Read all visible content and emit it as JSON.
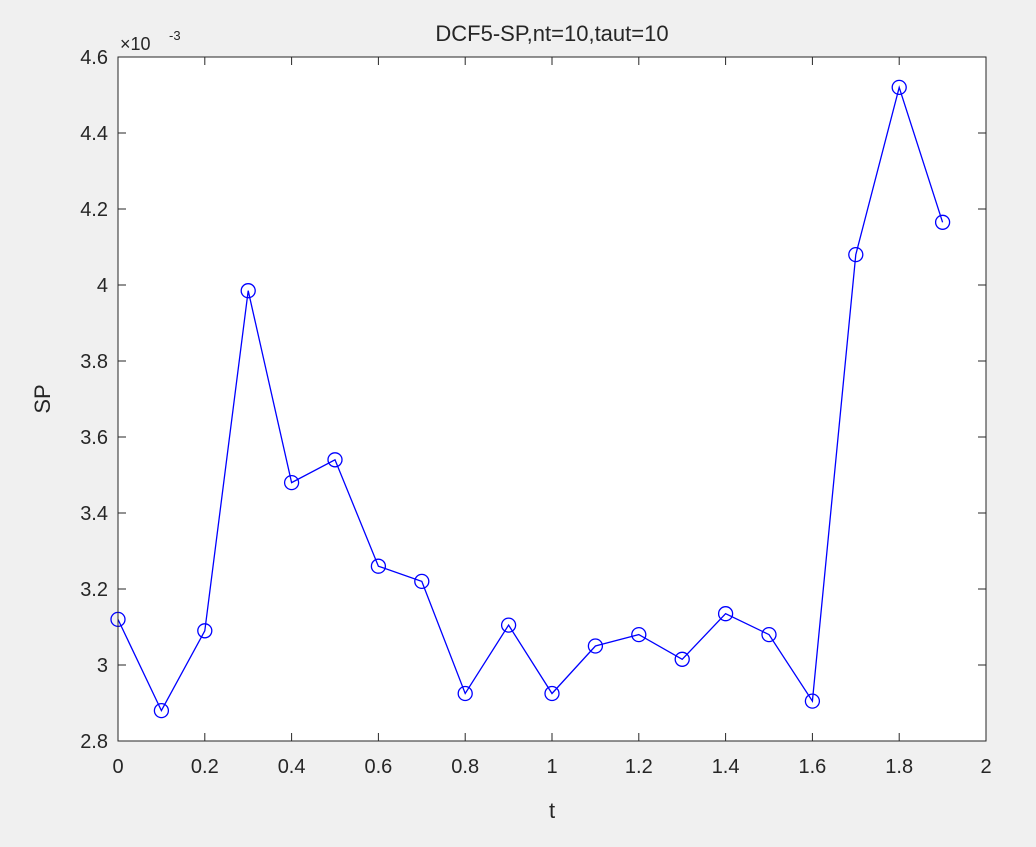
{
  "chart_data": {
    "type": "line",
    "title": "DCF5-SP,nt=10,taut=10",
    "xlabel": "t",
    "ylabel": "SP",
    "exponent_label": "×10",
    "exponent_power": "-3",
    "xlim": [
      0,
      2
    ],
    "ylim": [
      2.8,
      4.6
    ],
    "x_ticks": [
      "0",
      "0.2",
      "0.4",
      "0.6",
      "0.8",
      "1",
      "1.2",
      "1.4",
      "1.6",
      "1.8",
      "2"
    ],
    "y_ticks": [
      "2.8",
      "3",
      "3.2",
      "3.4",
      "3.6",
      "3.8",
      "4",
      "4.2",
      "4.4",
      "4.6"
    ],
    "grid": false,
    "series": [
      {
        "color": "#0000ff",
        "marker": "circle",
        "x": [
          0,
          0.1,
          0.2,
          0.3,
          0.4,
          0.5,
          0.6,
          0.7,
          0.8,
          0.9,
          1.0,
          1.1,
          1.2,
          1.3,
          1.4,
          1.5,
          1.6,
          1.7,
          1.8,
          1.9
        ],
        "y": [
          3.12,
          2.88,
          3.09,
          3.985,
          3.48,
          3.54,
          3.26,
          3.22,
          2.925,
          3.105,
          2.925,
          3.05,
          3.08,
          3.015,
          3.135,
          3.08,
          2.905,
          4.08,
          4.52,
          4.165
        ]
      }
    ]
  }
}
